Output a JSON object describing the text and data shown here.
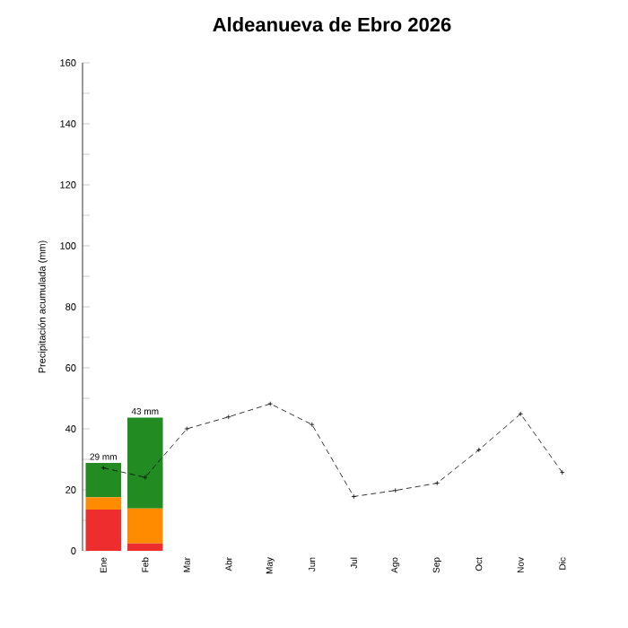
{
  "chart_data": {
    "type": "bar",
    "title": "Aldeanueva de Ebro 2026",
    "ylabel": "Precipitación acumulada (mm)",
    "categories": [
      "Ene",
      "Feb",
      "Mar",
      "Abr",
      "May",
      "Jun",
      "Jul",
      "Ago",
      "Sep",
      "Oct",
      "Nov",
      "Dic"
    ],
    "stacked": true,
    "series": [
      {
        "color": "#ee2e2e",
        "values": [
          13.5,
          2.4,
          null,
          null,
          null,
          null,
          null,
          null,
          null,
          null,
          null,
          null
        ]
      },
      {
        "color": "#ff8c00",
        "values": [
          4.1,
          11.5,
          null,
          null,
          null,
          null,
          null,
          null,
          null,
          null,
          null,
          null
        ]
      },
      {
        "color": "#228b22",
        "values": [
          11.2,
          29.8,
          null,
          null,
          null,
          null,
          null,
          null,
          null,
          null,
          null,
          null
        ]
      },
      {
        "type": "line",
        "color": "#000000",
        "marker": "cross",
        "line_style": "dashed",
        "values": [
          27.2,
          24.1,
          40,
          43.9,
          48.2,
          41.4,
          17.8,
          19.8,
          22.2,
          33.1,
          44.9,
          25.7
        ]
      }
    ],
    "totals": [
      "29 mm",
      "43 mm",
      null,
      null,
      null,
      null,
      null,
      null,
      null,
      null,
      null,
      null
    ],
    "ylim": [
      0,
      160
    ],
    "yticks": [
      0,
      {
        "value": 10,
        "label": null
      },
      20,
      {
        "value": 30,
        "label": null
      },
      40,
      {
        "value": 50,
        "label": null
      },
      60,
      {
        "value": 70,
        "label": null
      },
      80,
      {
        "value": 90,
        "label": null
      },
      100,
      {
        "value": 110,
        "label": null
      },
      120,
      {
        "value": 130,
        "label": null
      },
      140,
      {
        "value": 150,
        "label": null
      },
      160
    ],
    "grid": false,
    "legend": false
  }
}
